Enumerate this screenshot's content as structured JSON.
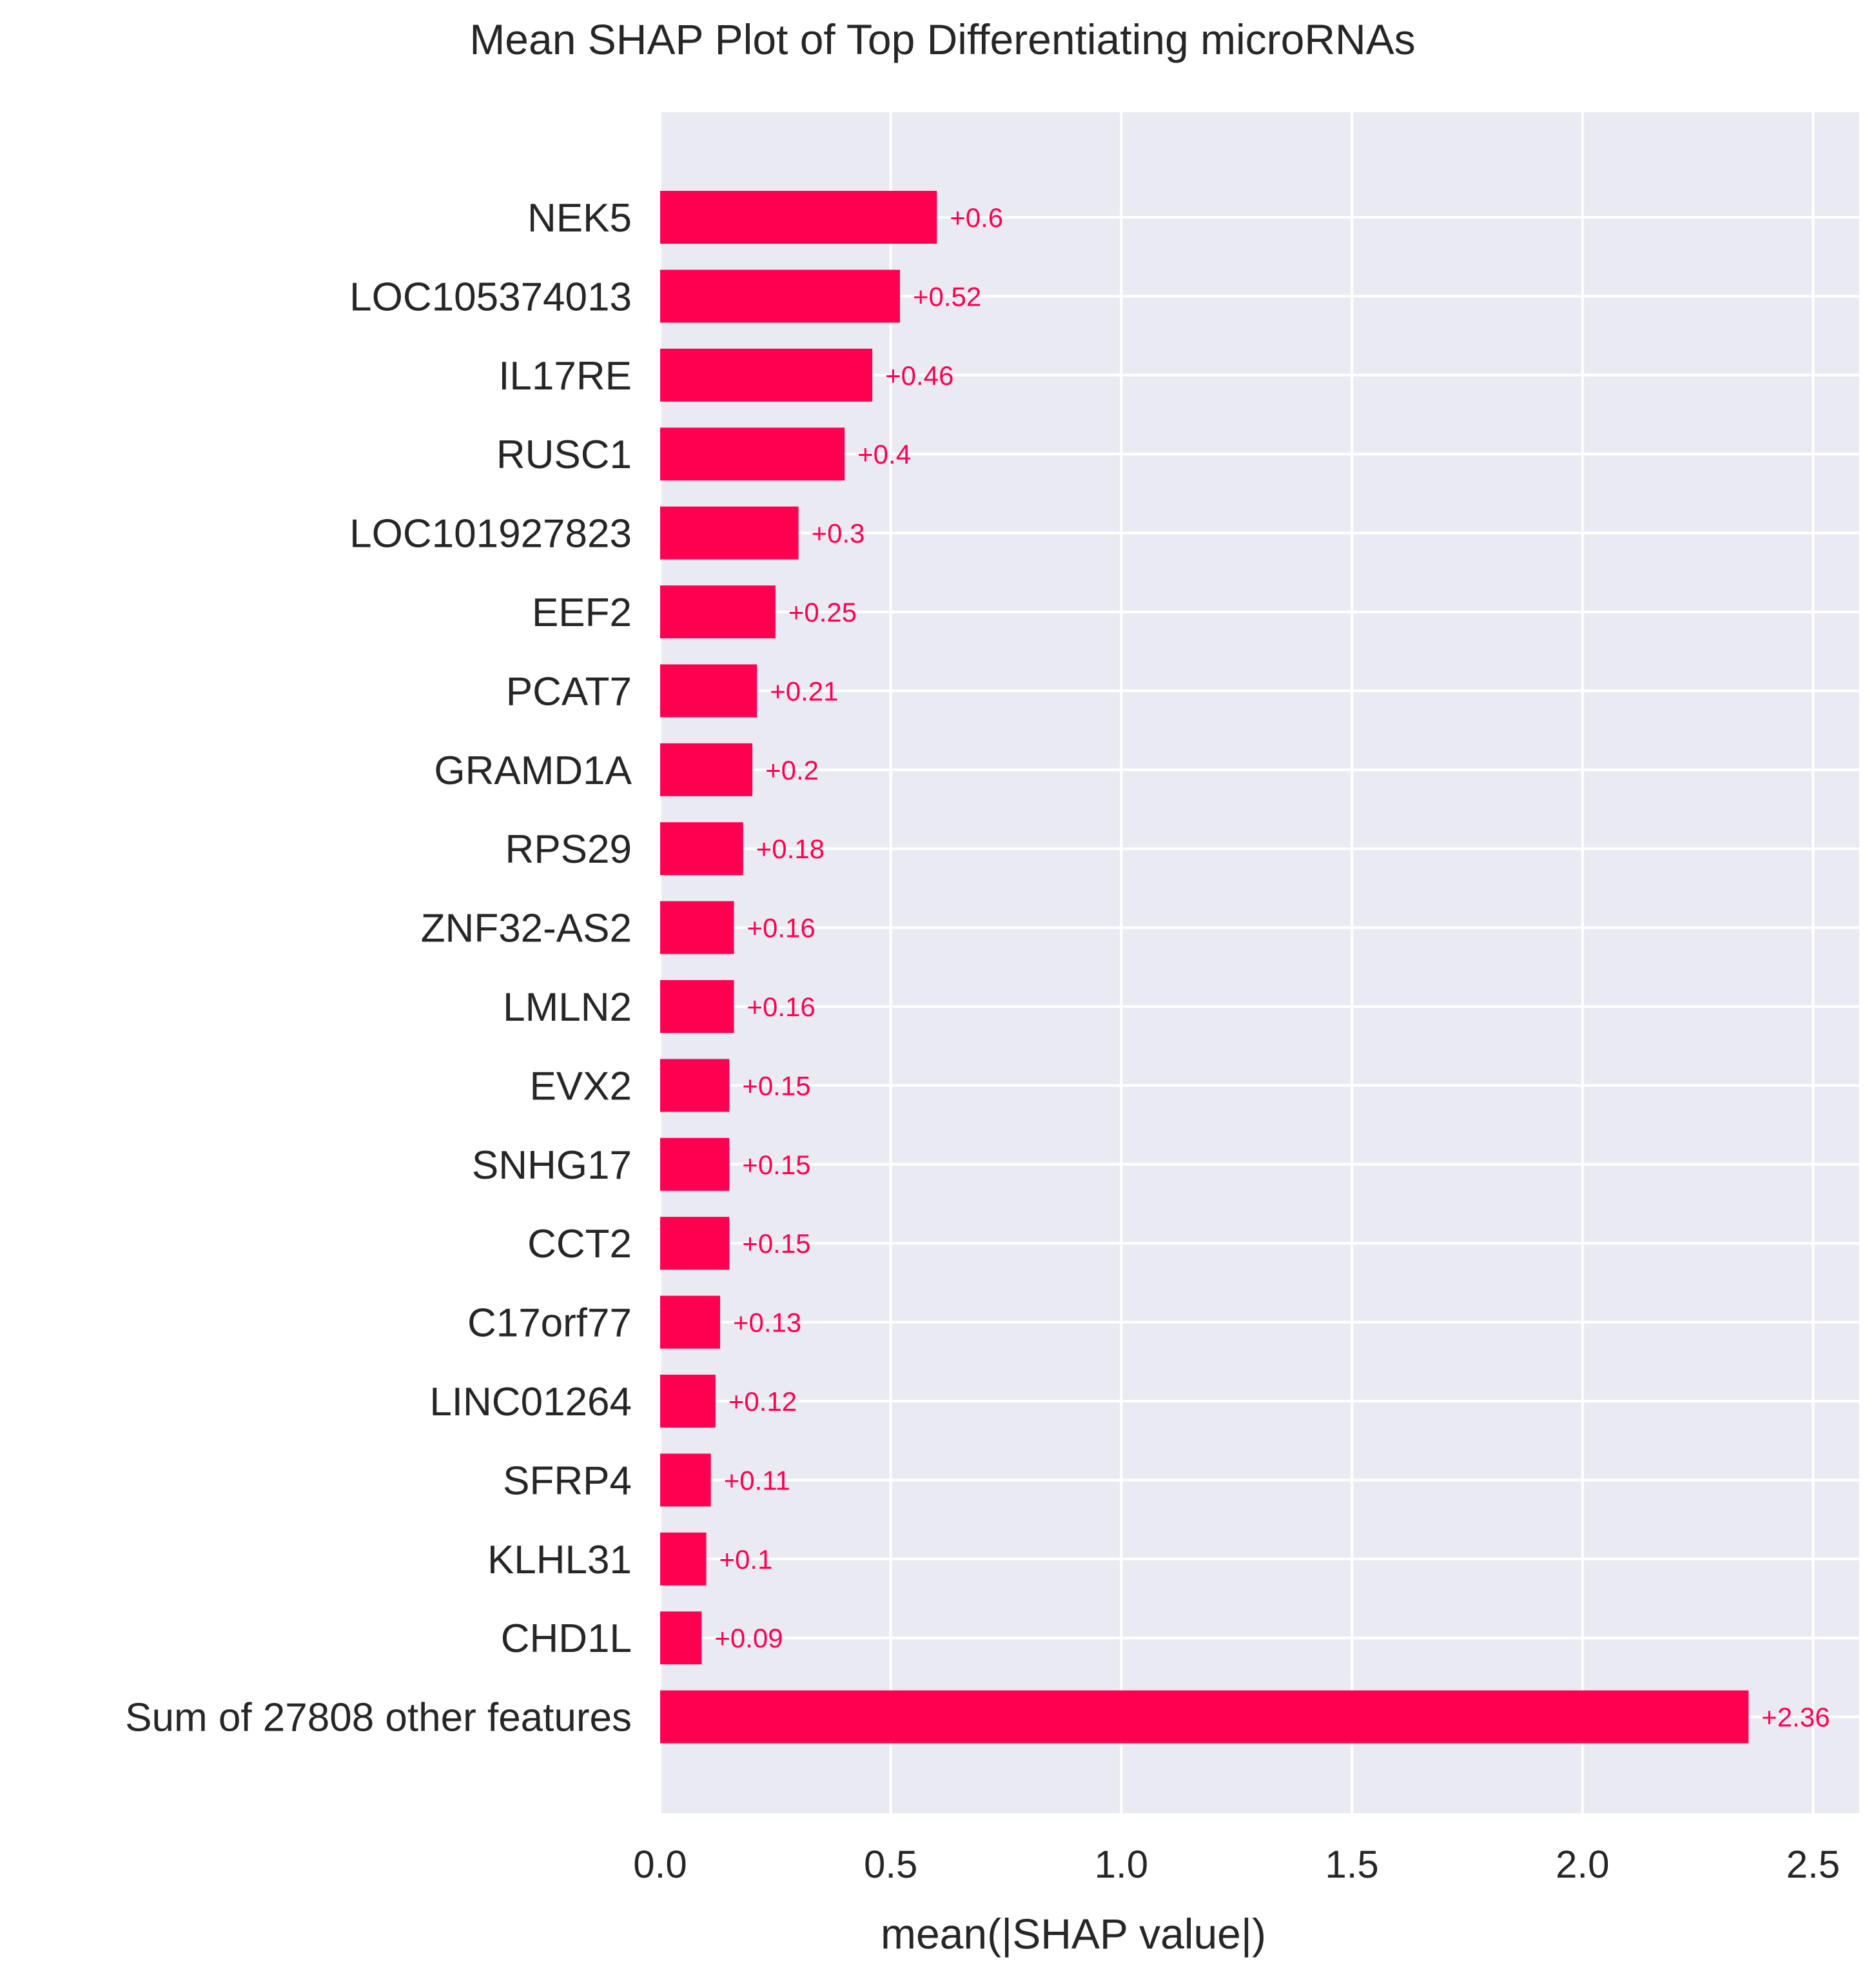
{
  "chart_data": {
    "type": "bar",
    "orientation": "horizontal",
    "title": "Mean SHAP Plot of Top Differentiating microRNAs",
    "xlabel": "mean(|SHAP value|)",
    "ylabel": "",
    "categories": [
      "NEK5",
      "LOC105374013",
      "IL17RE",
      "RUSC1",
      "LOC101927823",
      "EEF2",
      "PCAT7",
      "GRAMD1A",
      "RPS29",
      "ZNF32-AS2",
      "LMLN2",
      "EVX2",
      "SNHG17",
      "CCT2",
      "C17orf77",
      "LINC01264",
      "SFRP4",
      "KLHL31",
      "CHD1L",
      "Sum of 27808 other features"
    ],
    "values": [
      0.6,
      0.52,
      0.46,
      0.4,
      0.3,
      0.25,
      0.21,
      0.2,
      0.18,
      0.16,
      0.16,
      0.15,
      0.15,
      0.15,
      0.13,
      0.12,
      0.11,
      0.1,
      0.09,
      2.36
    ],
    "value_labels": [
      "+0.6",
      "+0.52",
      "+0.46",
      "+0.4",
      "+0.3",
      "+0.25",
      "+0.21",
      "+0.2",
      "+0.18",
      "+0.16",
      "+0.16",
      "+0.15",
      "+0.15",
      "+0.15",
      "+0.13",
      "+0.12",
      "+0.11",
      "+0.1",
      "+0.09",
      "+2.36"
    ],
    "xticks": [
      "0.0",
      "0.5",
      "1.0",
      "1.5",
      "2.0",
      "2.5"
    ],
    "xlim": [
      0,
      2.6
    ],
    "grid": true,
    "colors": {
      "bar": "#ff0051",
      "plot_background": "#eaeaf2",
      "grid": "#ffffff",
      "text": "#262626"
    }
  }
}
